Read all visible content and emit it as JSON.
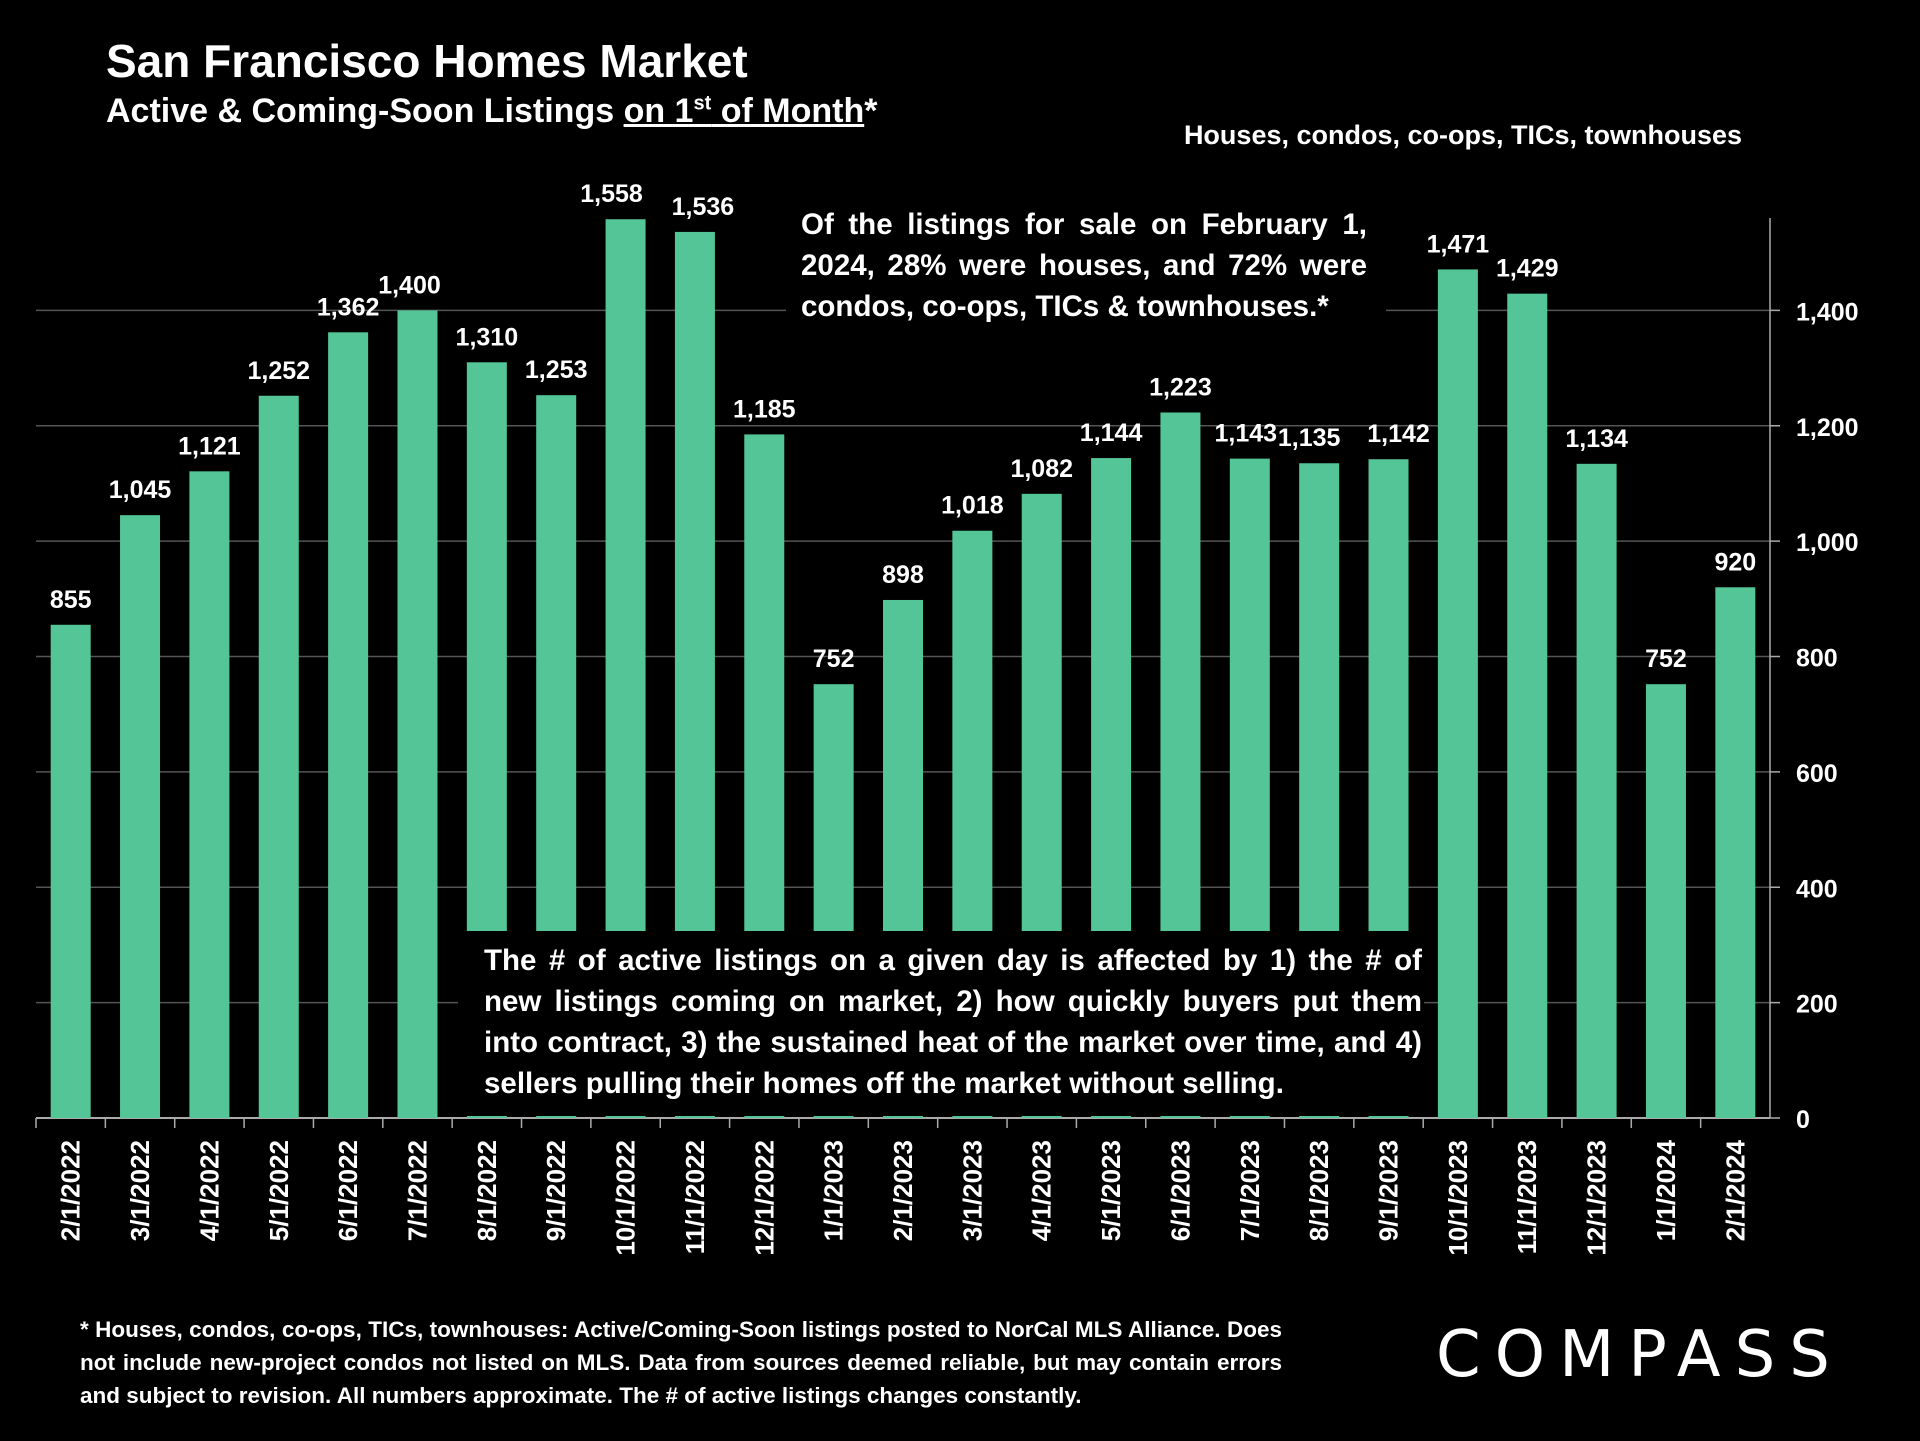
{
  "header": {
    "title": "San Francisco Homes Market",
    "subtitle_prefix": "Active & Coming-Soon Listings ",
    "subtitle_underlined_a": "on 1",
    "subtitle_sup": "st",
    "subtitle_underlined_b": " of Month",
    "subtitle_suffix": "*",
    "note": "Houses, condos, co-ops, TICs, townhouses"
  },
  "annotations": {
    "top": "Of the listings for sale on February 1, 2024, 28% were houses, and 72% were condos, co-ops, TICs & townhouses.*",
    "bottom": "The # of active listings on a given day is affected by 1) the # of new listings coming on market, 2) how quickly buyers put them into contract, 3) the sustained heat of the market over time, and 4) sellers pulling their homes off the market without selling."
  },
  "footnote": "* Houses, condos, co-ops, TICs, townhouses: Active/Coming-Soon listings posted to NorCal MLS Alliance. Does not include new-project condos not listed on MLS. Data from sources deemed reliable, but may contain errors and subject to revision. All numbers approximate. The # of active listings changes constantly.",
  "brand": "COMPASS",
  "colors": {
    "bar": "#53C597",
    "background": "#000000",
    "text": "#FFFFFF",
    "grid": "#555555"
  },
  "chart_data": {
    "type": "bar",
    "title": "San Francisco Homes Market",
    "ylabel": "Active & Coming-Soon Listings",
    "ylim": [
      0,
      1600
    ],
    "yticks": [
      0,
      200,
      400,
      600,
      800,
      1000,
      1200,
      1400
    ],
    "ytick_labels": [
      "0",
      "200",
      "400",
      "600",
      "800",
      "1,000",
      "1,200",
      "1,400"
    ],
    "grid": true,
    "categories": [
      "2/1/2022",
      "3/1/2022",
      "4/1/2022",
      "5/1/2022",
      "6/1/2022",
      "7/1/2022",
      "8/1/2022",
      "9/1/2022",
      "10/1/2022",
      "11/1/2022",
      "12/1/2022",
      "1/1/2023",
      "2/1/2023",
      "3/1/2023",
      "4/1/2023",
      "5/1/2023",
      "6/1/2023",
      "7/1/2023",
      "8/1/2023",
      "9/1/2023",
      "10/1/2023",
      "11/1/2023",
      "12/1/2023",
      "1/1/2024",
      "2/1/2024"
    ],
    "values": [
      855,
      1045,
      1121,
      1252,
      1362,
      1400,
      1310,
      1253,
      1558,
      1536,
      1185,
      752,
      898,
      1018,
      1082,
      1144,
      1223,
      1143,
      1135,
      1142,
      1471,
      1429,
      1134,
      752,
      920
    ],
    "labels": [
      "855",
      "1,045",
      "1,121",
      "1,252",
      "1,362",
      "1,400",
      "1,310",
      "1,253",
      "1,558",
      "1,536",
      "1,185",
      "752",
      "898",
      "1,018",
      "1,082",
      "1,144",
      "1,223",
      "1,143",
      "1,135",
      "1,142",
      "1,471",
      "1,429",
      "1,134",
      "752",
      "920"
    ]
  }
}
